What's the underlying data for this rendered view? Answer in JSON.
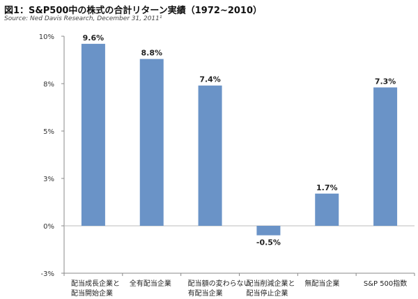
{
  "title": "図1：S&P500中の株式の合計リターン実績（1972~2010）",
  "source": "Source: Ned Davis Research, December 31, 2011¹",
  "chart_data": {
    "type": "bar",
    "title": "図1：S&P500中の株式の合計リターン実績（1972~2010）",
    "categories": [
      [
        "配当成長企業と",
        "配当開始企業"
      ],
      [
        "全有配当企業"
      ],
      [
        "配当額の変わらない",
        "有配当企業"
      ],
      [
        "配当削減企業と",
        "配当停止企業"
      ],
      [
        "無配当企業"
      ],
      [
        "S&P 500指数"
      ]
    ],
    "values": [
      9.6,
      8.8,
      7.4,
      -0.5,
      1.7,
      7.3
    ],
    "data_labels": [
      "9.6%",
      "8.8%",
      "7.4%",
      "-0.5%",
      "1.7%",
      "7.3%"
    ],
    "ylim": [
      -2.5,
      10
    ],
    "yticks": [
      10,
      7.5,
      5,
      2.5,
      0,
      -2.5
    ],
    "ytick_labels": [
      "10%",
      "8%",
      "5%",
      "3%",
      "0%",
      "-3%"
    ],
    "bar_color": "#6a93c7",
    "xlabel": "",
    "ylabel": ""
  }
}
